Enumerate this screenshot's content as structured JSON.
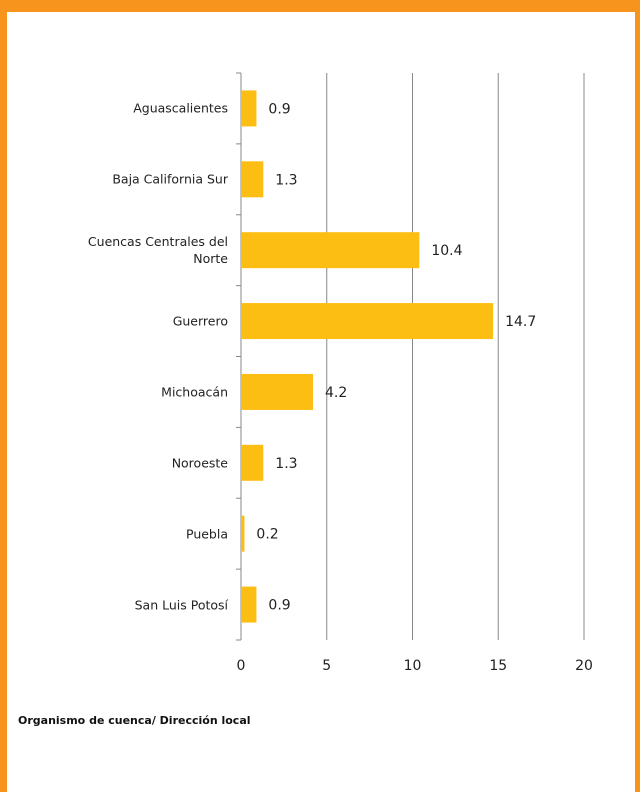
{
  "chart_data": {
    "type": "bar",
    "orientation": "horizontal",
    "categories": [
      "Aguascalientes",
      "Baja California Sur",
      "Cuencas Centrales del Norte",
      "Guerrero",
      "Michoacán",
      "Noroeste",
      "Puebla",
      "San Luis Potosí"
    ],
    "values": [
      0.9,
      1.3,
      10.4,
      14.7,
      4.2,
      1.3,
      0.2,
      0.9
    ],
    "color": "#FDBE14",
    "xlim": [
      0,
      20
    ],
    "xticks": [
      0,
      5,
      10,
      15,
      20
    ],
    "grid": true,
    "axis_label": "Organismo de cuenca/ Dirección local"
  }
}
